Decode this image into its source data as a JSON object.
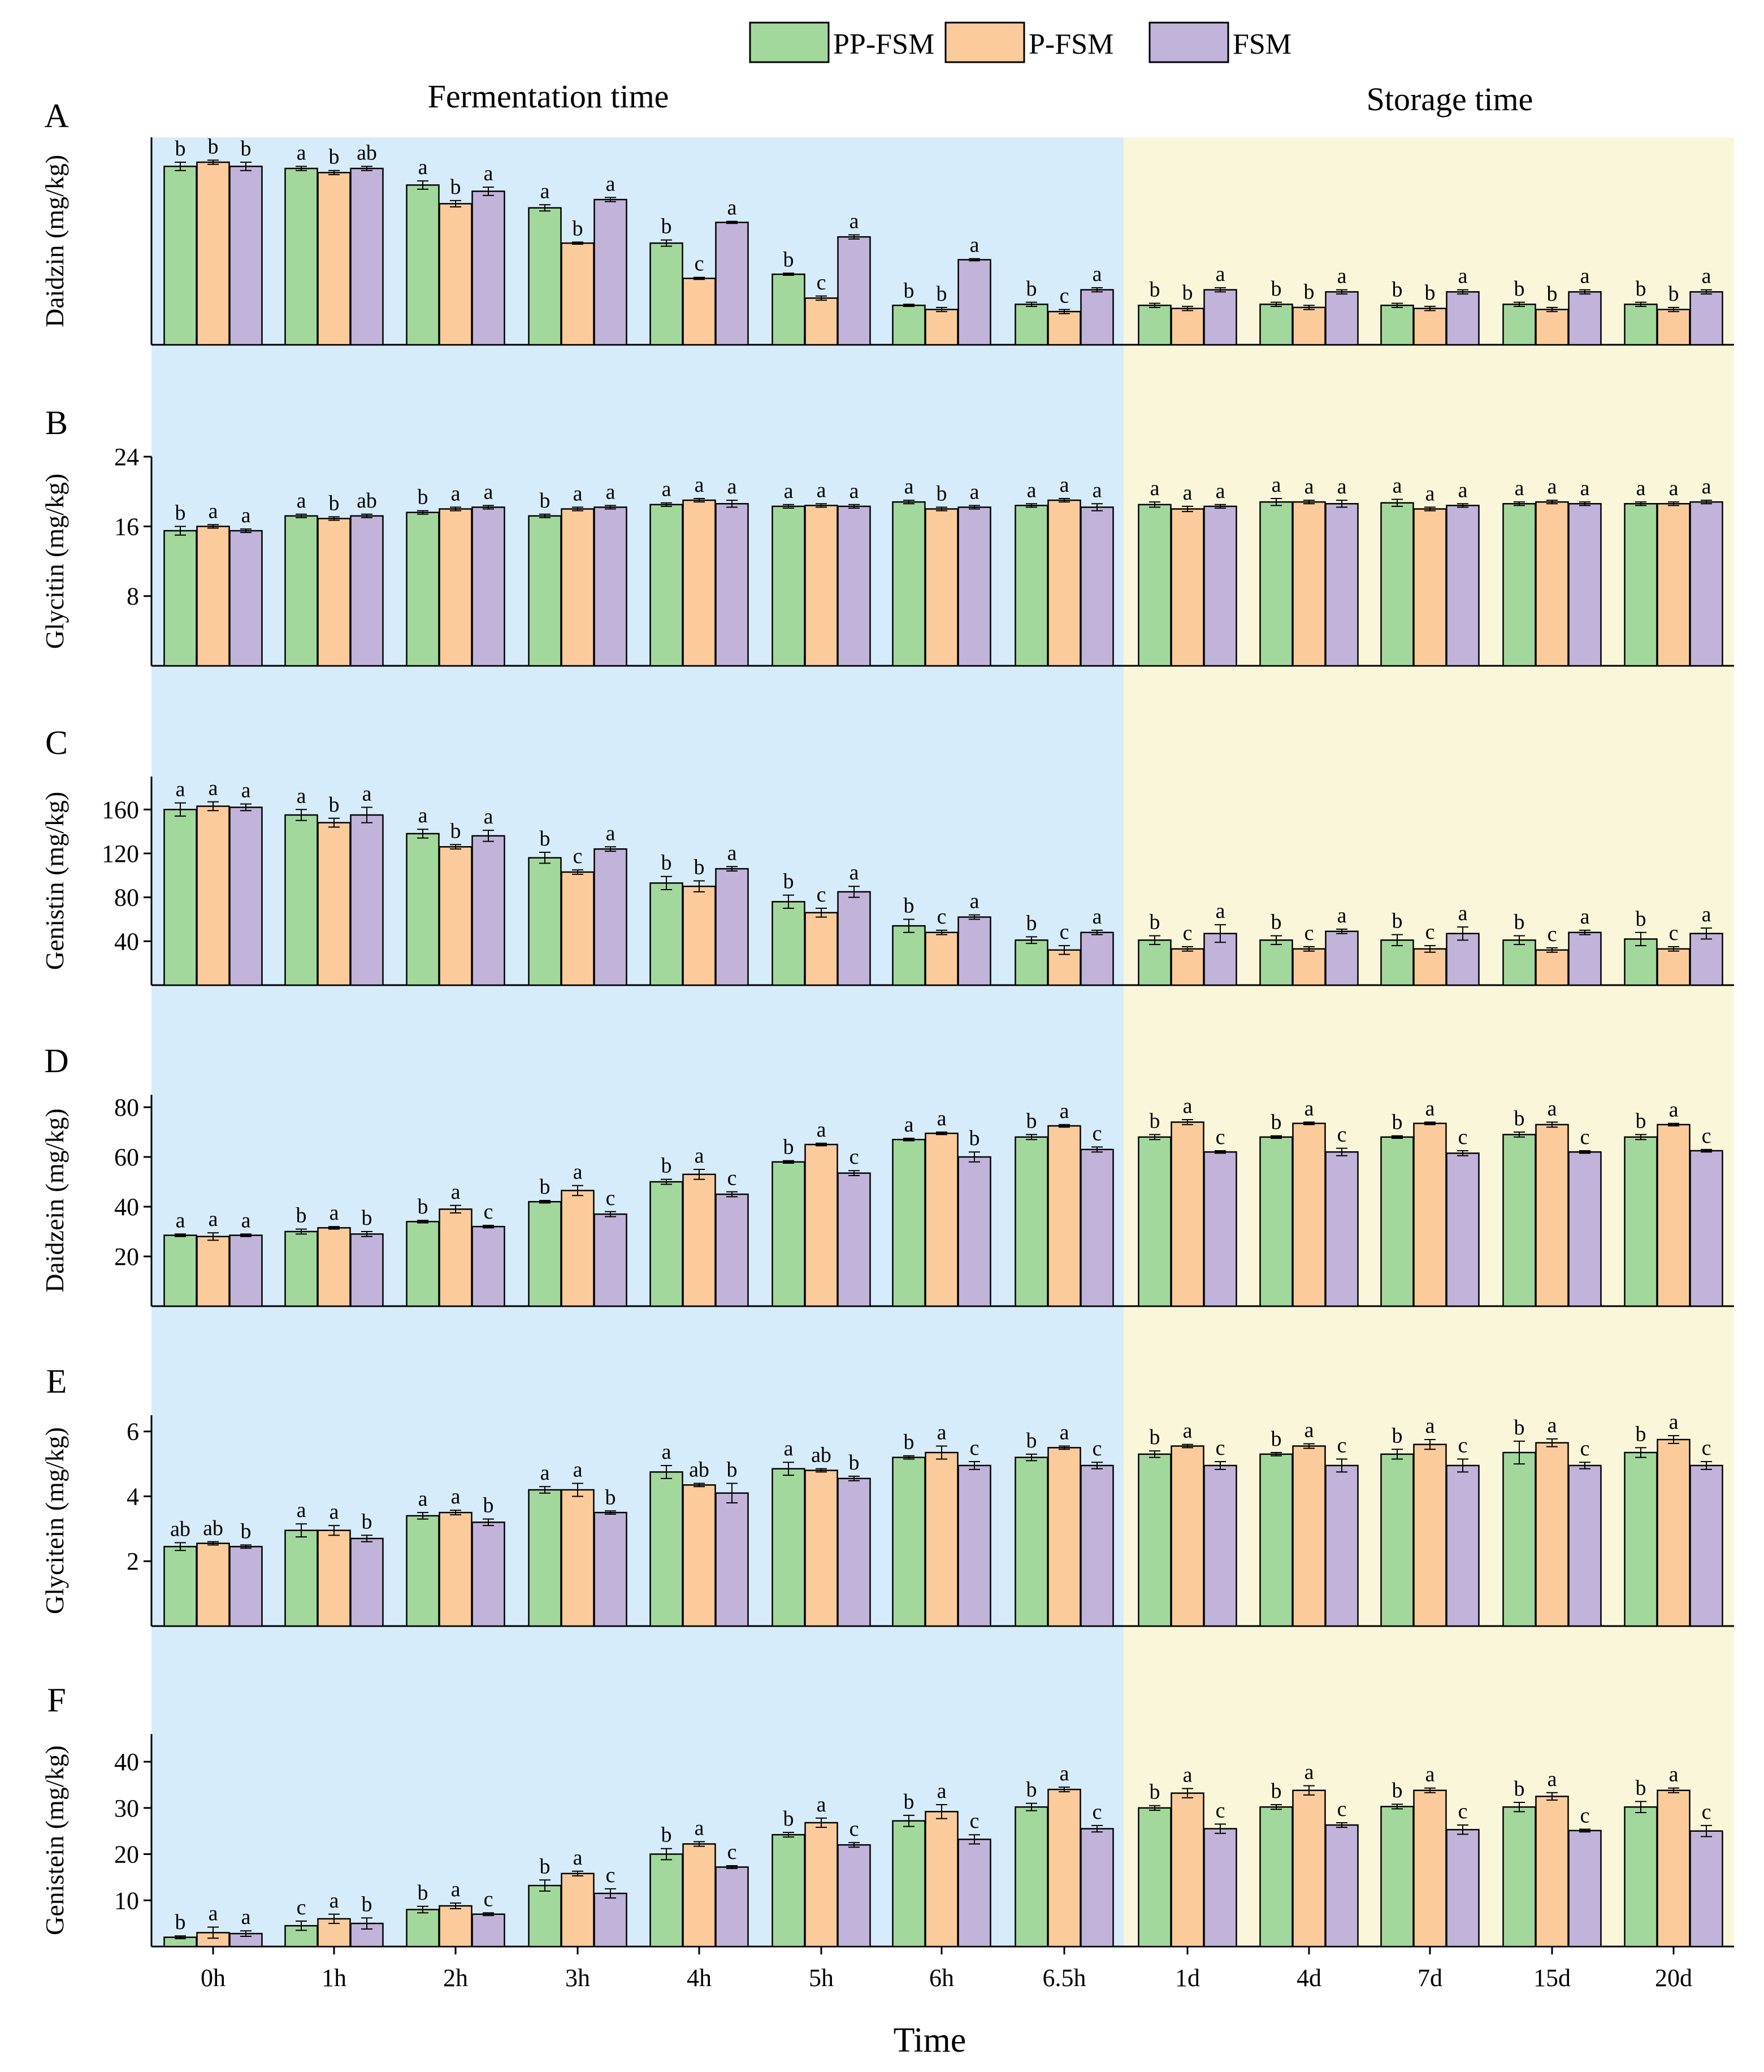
{
  "chart_data": {
    "type": "bar",
    "xlabel": "Time",
    "section_labels": [
      "Fermentation time",
      "Storage time"
    ],
    "categories": [
      "0h",
      "1h",
      "2h",
      "3h",
      "4h",
      "5h",
      "6h",
      "6.5h",
      "1d",
      "4d",
      "7d",
      "15d",
      "20d"
    ],
    "fermentation_count": 8,
    "legend": [
      "PP-FSM",
      "P-FSM",
      "FSM"
    ],
    "colors": {
      "PP-FSM": "#a3d89d",
      "P-FSM": "#fccb9b",
      "FSM": "#c2b3da",
      "fermentation_bg": "#d6ecfa",
      "storage_bg": "#f9f6d9"
    },
    "panels": [
      {
        "label": "A",
        "ylabel": "Daidzin (mg/kg)",
        "ylim": [
          0,
          100
        ],
        "yticks": [],
        "series": [
          {
            "name": "PP-FSM",
            "values": [
              86,
              85,
              77,
              66,
              49,
              34,
              19,
              19.5,
              19,
              19.5,
              19,
              19.5,
              19.5
            ],
            "errors": [
              2,
              1,
              2,
              1.5,
              1.5,
              0.5,
              0.5,
              1,
              1,
              1,
              1,
              1,
              1
            ],
            "letters": [
              "b",
              "a",
              "a",
              "a",
              "b",
              "b",
              "b",
              "b",
              "b",
              "b",
              "b",
              "b",
              "b"
            ]
          },
          {
            "name": "P-FSM",
            "values": [
              88,
              83,
              68,
              49,
              32,
              22.5,
              17,
              16,
              17.5,
              18,
              17.5,
              17,
              17
            ],
            "errors": [
              1,
              1,
              1.5,
              0.5,
              0.5,
              1,
              1,
              1,
              1,
              1,
              1,
              1,
              1
            ],
            "letters": [
              "b",
              "b",
              "b",
              "b",
              "c",
              "c",
              "b",
              "c",
              "b",
              "b",
              "b",
              "b",
              "b"
            ]
          },
          {
            "name": "FSM",
            "values": [
              86,
              85,
              74,
              70,
              59,
              52,
              41,
              26.5,
              26.5,
              25.5,
              25.5,
              25.5,
              25.5
            ],
            "errors": [
              2,
              1,
              2,
              1,
              0.5,
              1,
              0.5,
              1,
              1,
              1,
              1,
              1,
              1
            ],
            "letters": [
              "b",
              "ab",
              "a",
              "a",
              "a",
              "a",
              "a",
              "a",
              "a",
              "a",
              "a",
              "a",
              "a"
            ]
          }
        ]
      },
      {
        "label": "B",
        "ylabel": "Glycitin (mg/kg)",
        "ylim": [
          0,
          24
        ],
        "yticks": [
          8,
          16,
          24
        ],
        "series": [
          {
            "name": "PP-FSM",
            "values": [
              15.5,
              17.2,
              17.6,
              17.2,
              18.5,
              18.3,
              18.8,
              18.4,
              18.5,
              18.8,
              18.7,
              18.6,
              18.6
            ],
            "errors": [
              0.5,
              0.2,
              0.2,
              0.2,
              0.2,
              0.2,
              0.2,
              0.2,
              0.3,
              0.4,
              0.4,
              0.2,
              0.2
            ],
            "letters": [
              "b",
              "a",
              "b",
              "b",
              "a",
              "a",
              "a",
              "a",
              "a",
              "a",
              "a",
              "a",
              "a"
            ]
          },
          {
            "name": "P-FSM",
            "values": [
              16.0,
              16.9,
              18.0,
              18.0,
              19.0,
              18.4,
              18.0,
              19.0,
              18.0,
              18.8,
              18.0,
              18.8,
              18.6
            ],
            "errors": [
              0.2,
              0.2,
              0.2,
              0.2,
              0.2,
              0.2,
              0.2,
              0.2,
              0.3,
              0.2,
              0.2,
              0.2,
              0.2
            ],
            "letters": [
              "a",
              "b",
              "a",
              "a",
              "a",
              "a",
              "b",
              "a",
              "a",
              "a",
              "a",
              "a",
              "a"
            ]
          },
          {
            "name": "FSM",
            "values": [
              15.5,
              17.2,
              18.2,
              18.2,
              18.6,
              18.3,
              18.2,
              18.2,
              18.3,
              18.6,
              18.4,
              18.6,
              18.8
            ],
            "errors": [
              0.2,
              0.2,
              0.2,
              0.2,
              0.4,
              0.2,
              0.2,
              0.4,
              0.2,
              0.4,
              0.2,
              0.2,
              0.2
            ],
            "letters": [
              "a",
              "ab",
              "a",
              "a",
              "a",
              "a",
              "a",
              "a",
              "a",
              "a",
              "a",
              "a",
              "a"
            ]
          }
        ]
      },
      {
        "label": "C",
        "ylabel": "Genistin (mg/kg)",
        "ylim": [
          0,
          190
        ],
        "yticks": [
          40,
          80,
          120,
          160
        ],
        "series": [
          {
            "name": "PP-FSM",
            "values": [
              160,
              155,
              138,
              116,
              93,
              76,
              54,
              41,
              41,
              41,
              41,
              41,
              42
            ],
            "errors": [
              6,
              5,
              4,
              5,
              6,
              6,
              6,
              3,
              4,
              4,
              5,
              4,
              6
            ],
            "letters": [
              "a",
              "a",
              "a",
              "b",
              "b",
              "b",
              "b",
              "b",
              "b",
              "b",
              "b",
              "b",
              "b"
            ]
          },
          {
            "name": "P-FSM",
            "values": [
              163,
              148,
              126,
              103,
              90,
              66,
              48,
              32,
              33,
              33,
              33,
              32,
              33
            ],
            "errors": [
              4,
              4,
              2,
              2,
              5,
              4,
              2,
              4,
              2,
              2,
              3,
              2,
              2
            ],
            "letters": [
              "a",
              "b",
              "b",
              "c",
              "b",
              "c",
              "c",
              "c",
              "c",
              "c",
              "c",
              "c",
              "c"
            ]
          },
          {
            "name": "FSM",
            "values": [
              162,
              155,
              136,
              124,
              106,
              85,
              62,
              48,
              47,
              49,
              47,
              48,
              47
            ],
            "errors": [
              3,
              7,
              5,
              2,
              2,
              5,
              2,
              2,
              8,
              2,
              6,
              2,
              5
            ],
            "letters": [
              "a",
              "a",
              "a",
              "a",
              "a",
              "a",
              "a",
              "a",
              "a",
              "a",
              "a",
              "a",
              "a"
            ]
          }
        ]
      },
      {
        "label": "D",
        "ylabel": "Daidzein (mg/kg)",
        "ylim": [
          0,
          85
        ],
        "yticks": [
          20,
          40,
          60,
          80
        ],
        "series": [
          {
            "name": "PP-FSM",
            "values": [
              28.5,
              30,
              34,
              42,
              50,
              58,
              67,
              68,
              68,
              68,
              68,
              69,
              68
            ],
            "errors": [
              0.5,
              1,
              0.5,
              0.5,
              1,
              0.5,
              0.5,
              1,
              1,
              0.5,
              0.5,
              1,
              1
            ],
            "letters": [
              "a",
              "b",
              "b",
              "b",
              "b",
              "b",
              "a",
              "b",
              "b",
              "b",
              "b",
              "b",
              "b"
            ]
          },
          {
            "name": "P-FSM",
            "values": [
              28,
              31.5,
              39,
              46.5,
              53,
              65,
              69.5,
              72.5,
              74,
              73.5,
              73.5,
              73,
              73
            ],
            "errors": [
              1.5,
              0.5,
              1.5,
              2,
              2,
              0.5,
              0.5,
              0.5,
              1,
              0.5,
              0.5,
              1,
              0.5
            ],
            "letters": [
              "a",
              "a",
              "a",
              "a",
              "a",
              "a",
              "a",
              "a",
              "a",
              "a",
              "a",
              "a",
              "a"
            ]
          },
          {
            "name": "FSM",
            "values": [
              28.5,
              29,
              32,
              37,
              45,
              53.5,
              60,
              63,
              62,
              62,
              61.5,
              62,
              62.5
            ],
            "errors": [
              0.5,
              1,
              0.5,
              1,
              1,
              1,
              2,
              1,
              0.5,
              1.5,
              1,
              0.5,
              0.5
            ],
            "letters": [
              "a",
              "b",
              "c",
              "c",
              "c",
              "c",
              "b",
              "c",
              "c",
              "c",
              "c",
              "c",
              "c"
            ]
          }
        ]
      },
      {
        "label": "E",
        "ylabel": "Glycitein (mg/kg)",
        "ylim": [
          0,
          6.5
        ],
        "yticks": [
          2,
          4,
          6
        ],
        "series": [
          {
            "name": "PP-FSM",
            "values": [
              2.45,
              2.95,
              3.4,
              4.2,
              4.75,
              4.85,
              5.2,
              5.2,
              5.3,
              5.3,
              5.3,
              5.35,
              5.35
            ],
            "errors": [
              0.12,
              0.2,
              0.1,
              0.1,
              0.2,
              0.2,
              0.05,
              0.1,
              0.1,
              0.05,
              0.15,
              0.35,
              0.15
            ],
            "letters": [
              "ab",
              "a",
              "a",
              "a",
              "a",
              "a",
              "b",
              "b",
              "b",
              "b",
              "b",
              "b",
              "b"
            ]
          },
          {
            "name": "P-FSM",
            "values": [
              2.55,
              2.95,
              3.5,
              4.2,
              4.35,
              4.8,
              5.35,
              5.5,
              5.55,
              5.55,
              5.6,
              5.65,
              5.75
            ],
            "errors": [
              0.05,
              0.15,
              0.07,
              0.2,
              0.05,
              0.05,
              0.2,
              0.05,
              0.05,
              0.07,
              0.15,
              0.12,
              0.12
            ],
            "letters": [
              "ab",
              "a",
              "a",
              "a",
              "ab",
              "ab",
              "a",
              "a",
              "a",
              "a",
              "a",
              "a",
              "a"
            ]
          },
          {
            "name": "FSM",
            "values": [
              2.45,
              2.7,
              3.2,
              3.5,
              4.1,
              4.55,
              4.95,
              4.95,
              4.95,
              4.95,
              4.95,
              4.95,
              4.95
            ],
            "errors": [
              0.05,
              0.1,
              0.1,
              0.05,
              0.3,
              0.07,
              0.12,
              0.1,
              0.12,
              0.2,
              0.2,
              0.1,
              0.12
            ],
            "letters": [
              "b",
              "b",
              "b",
              "b",
              "b",
              "b",
              "c",
              "c",
              "c",
              "c",
              "c",
              "c",
              "c"
            ]
          }
        ]
      },
      {
        "label": "F",
        "ylabel": "Genistein (mg/kg)",
        "ylim": [
          0,
          46
        ],
        "yticks": [
          10,
          20,
          30,
          40
        ],
        "series": [
          {
            "name": "PP-FSM",
            "values": [
              2,
              4.5,
              8,
              13.2,
              20,
              24.2,
              27.2,
              30.2,
              30,
              30.2,
              30.3,
              30.2,
              30.2
            ],
            "errors": [
              0.3,
              1,
              0.7,
              1.2,
              1.2,
              0.5,
              1.2,
              0.8,
              0.5,
              0.5,
              0.5,
              1,
              1.2
            ],
            "letters": [
              "b",
              "c",
              "b",
              "b",
              "b",
              "b",
              "b",
              "b",
              "b",
              "b",
              "b",
              "b",
              "b"
            ]
          },
          {
            "name": "P-FSM",
            "values": [
              3,
              6,
              8.8,
              15.8,
              22.2,
              26.8,
              29.2,
              34,
              33.2,
              33.8,
              33.8,
              32.5,
              33.8
            ],
            "errors": [
              1.2,
              1,
              0.6,
              0.5,
              0.5,
              1,
              1.5,
              0.5,
              1,
              1,
              0.5,
              0.8,
              0.5
            ],
            "letters": [
              "a",
              "a",
              "a",
              "a",
              "a",
              "a",
              "a",
              "a",
              "a",
              "a",
              "a",
              "a",
              "a"
            ]
          },
          {
            "name": "FSM",
            "values": [
              2.8,
              5,
              7,
              11.5,
              17.2,
              22,
              23.2,
              25.5,
              25.5,
              26.3,
              25.3,
              25.1,
              25
            ],
            "errors": [
              0.6,
              1.2,
              0.3,
              1,
              0.3,
              0.5,
              1,
              0.7,
              1,
              0.5,
              1,
              0.3,
              1.2
            ],
            "letters": [
              "a",
              "b",
              "c",
              "c",
              "c",
              "c",
              "c",
              "c",
              "c",
              "c",
              "c",
              "c",
              "c"
            ]
          }
        ]
      }
    ]
  }
}
